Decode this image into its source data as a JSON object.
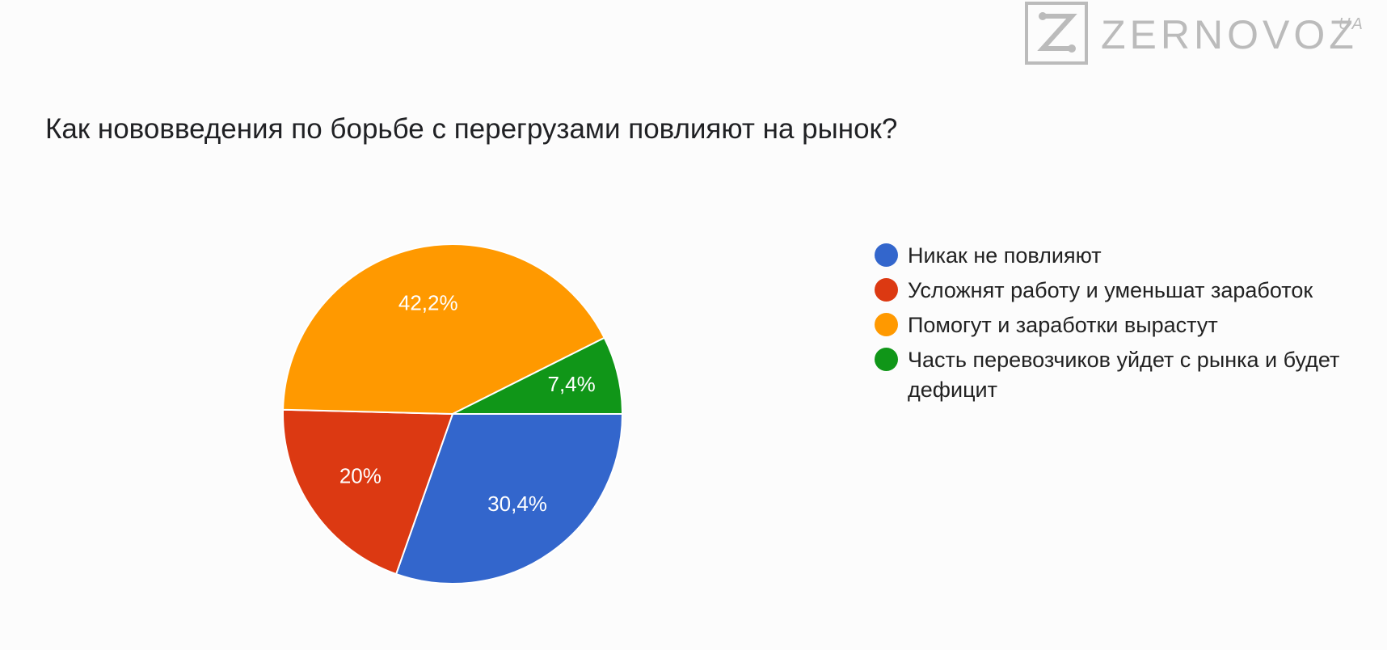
{
  "logo": {
    "wordmark": "ZERNOVOZ",
    "suffix": "UA",
    "color": "#bbbbbb",
    "icon": "z-letter-icon"
  },
  "chart_data": {
    "type": "pie",
    "title": "Как нововведения по борьбе с перегрузами повлияют на рынок?",
    "legend_position": "right",
    "slices": [
      {
        "label": "Никак не повлияют",
        "value": 30.4,
        "display": "30,4%",
        "color": "#3366cc"
      },
      {
        "label": "Усложнят работу и уменьшат заработок",
        "value": 20.0,
        "display": "20%",
        "color": "#dc3912"
      },
      {
        "label": "Помогут и заработки вырастут",
        "value": 42.2,
        "display": "42,2%",
        "color": "#ff9900"
      },
      {
        "label": "Часть перевозчиков уйдет с рынка и будет дефицит",
        "value": 7.4,
        "display": "7,4%",
        "color": "#109618"
      }
    ]
  }
}
